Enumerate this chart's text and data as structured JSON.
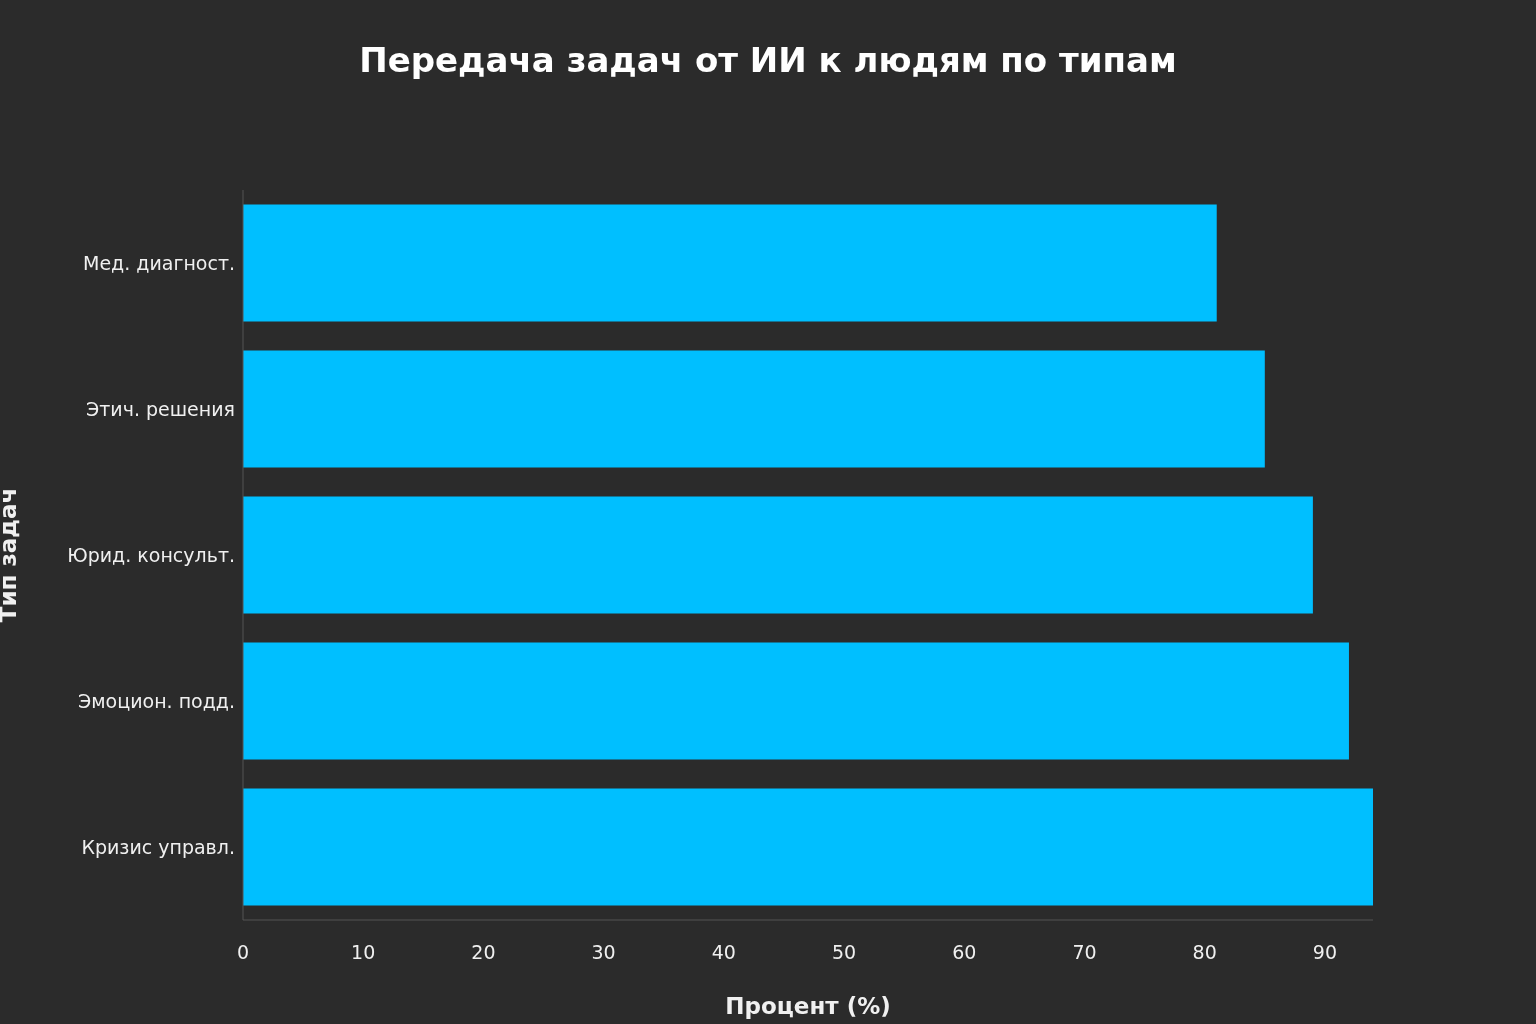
{
  "chart_data": {
    "type": "bar",
    "orientation": "horizontal",
    "title": "Передача задач от ИИ к людям по типам",
    "xlabel": "Процент (%)",
    "ylabel": "Тип задач",
    "categories": [
      "Мед. диагност.",
      "Этич. решения",
      "Юрид. консульт.",
      "Эмоцион. подд.",
      "Кризис управл."
    ],
    "values": [
      81,
      85,
      89,
      92,
      94
    ],
    "color": "#00bfff",
    "xlim": [
      0,
      94
    ],
    "xticks": [
      0,
      10,
      20,
      30,
      40,
      50,
      60,
      70,
      80,
      90
    ]
  }
}
